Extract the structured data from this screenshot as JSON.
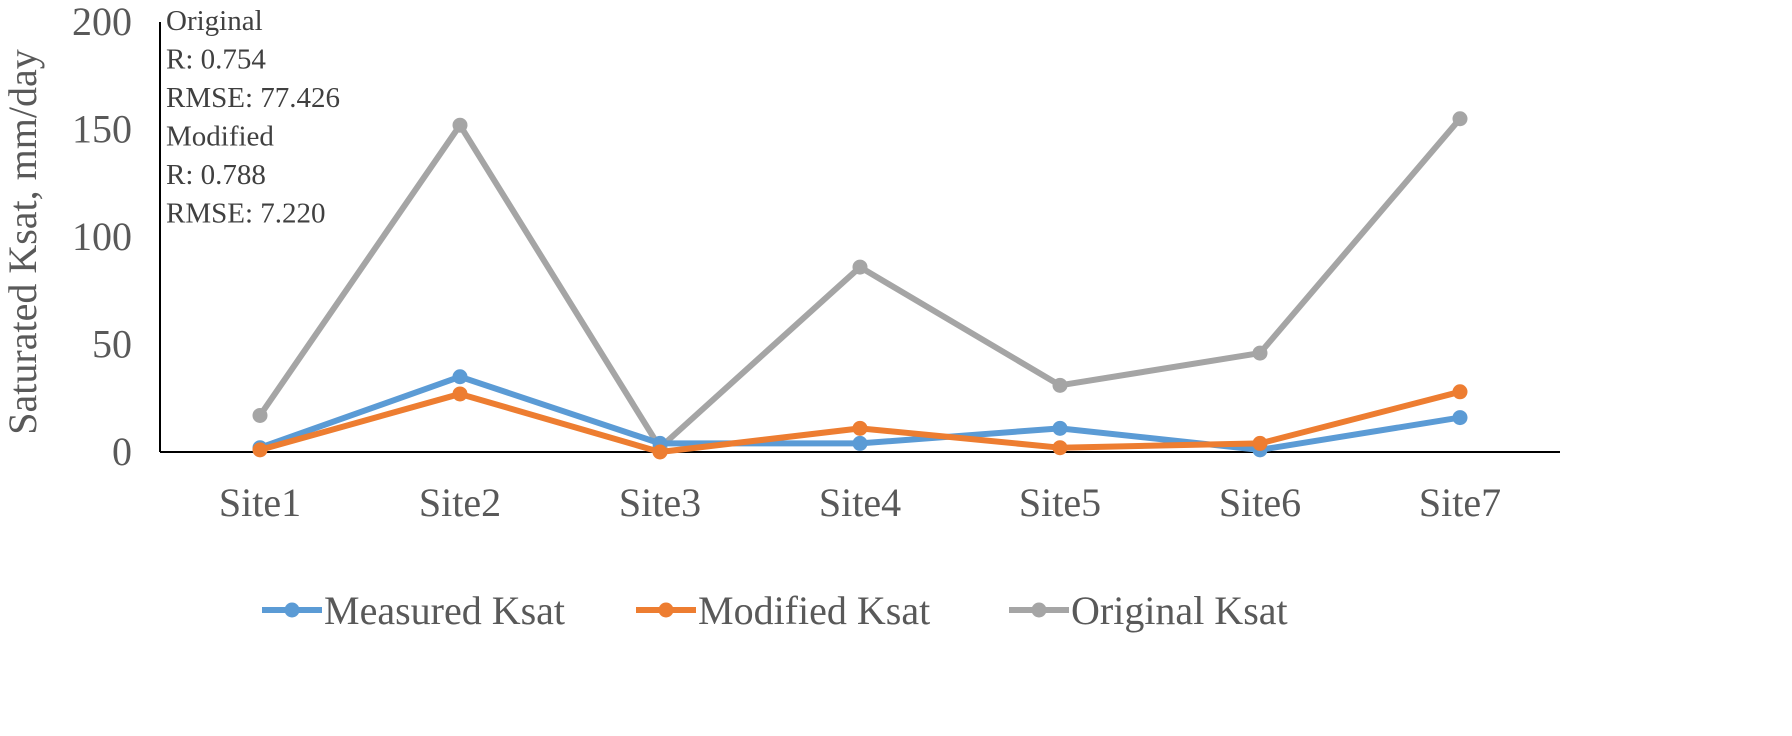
{
  "chart_data": {
    "type": "line",
    "title": "",
    "xlabel": "",
    "ylabel": "Saturated Ksat, mm/day",
    "ylim": [
      0,
      200
    ],
    "yticks": [
      0,
      50,
      100,
      150,
      200
    ],
    "grid": false,
    "legend_position": "bottom",
    "categories": [
      "Site1",
      "Site2",
      "Site3",
      "Site4",
      "Site5",
      "Site6",
      "Site7"
    ],
    "series": [
      {
        "name": "Measured Ksat",
        "color": "#5B9BD5",
        "values": [
          2,
          35,
          4,
          4,
          11,
          1,
          16
        ]
      },
      {
        "name": "Modified Ksat",
        "color": "#ED7D31",
        "values": [
          1,
          27,
          0,
          11,
          2,
          4,
          28
        ]
      },
      {
        "name": "Original Ksat",
        "color": "#A5A5A5",
        "values": [
          17,
          152,
          2,
          86,
          31,
          46,
          155
        ]
      }
    ],
    "annotations": [
      "Original",
      "R: 0.754",
      "RMSE: 77.426",
      "Modified",
      "R: 0.788",
      "RMSE: 7.220"
    ]
  }
}
